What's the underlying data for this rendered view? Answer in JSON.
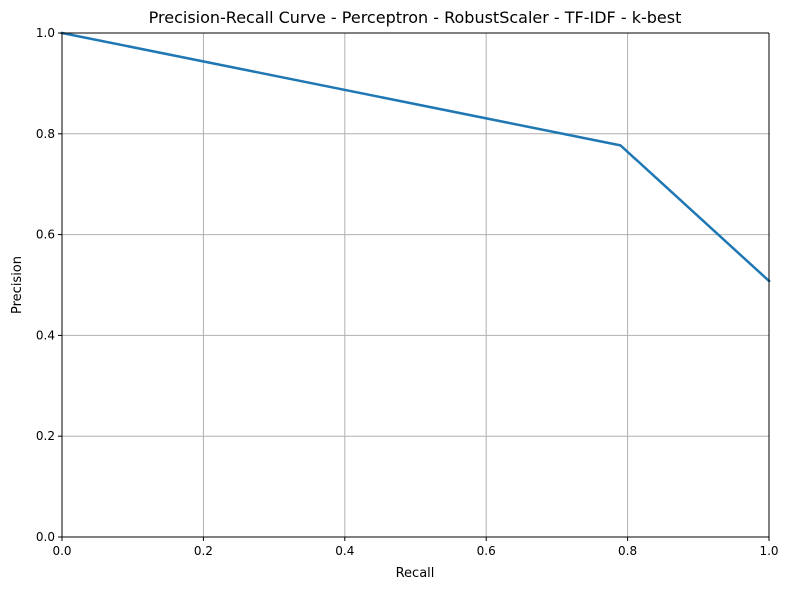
{
  "chart_data": {
    "type": "line",
    "title": "Precision-Recall Curve - Perceptron - RobustScaler - TF-IDF - k-best",
    "xlabel": "Recall",
    "ylabel": "Precision",
    "xlim": [
      0.0,
      1.0
    ],
    "ylim": [
      0.0,
      1.0
    ],
    "xticks": [
      0.0,
      0.2,
      0.4,
      0.6,
      0.8,
      1.0
    ],
    "yticks": [
      0.0,
      0.2,
      0.4,
      0.6,
      0.8,
      1.0
    ],
    "xtick_labels": [
      "0.0",
      "0.2",
      "0.4",
      "0.6",
      "0.8",
      "1.0"
    ],
    "ytick_labels": [
      "0.0",
      "0.2",
      "0.4",
      "0.6",
      "0.8",
      "1.0"
    ],
    "grid": true,
    "series": [
      {
        "color": "#1f77b4",
        "x": [
          0.0,
          0.79,
          1.0
        ],
        "y": [
          1.0,
          0.777,
          0.508
        ]
      }
    ]
  }
}
